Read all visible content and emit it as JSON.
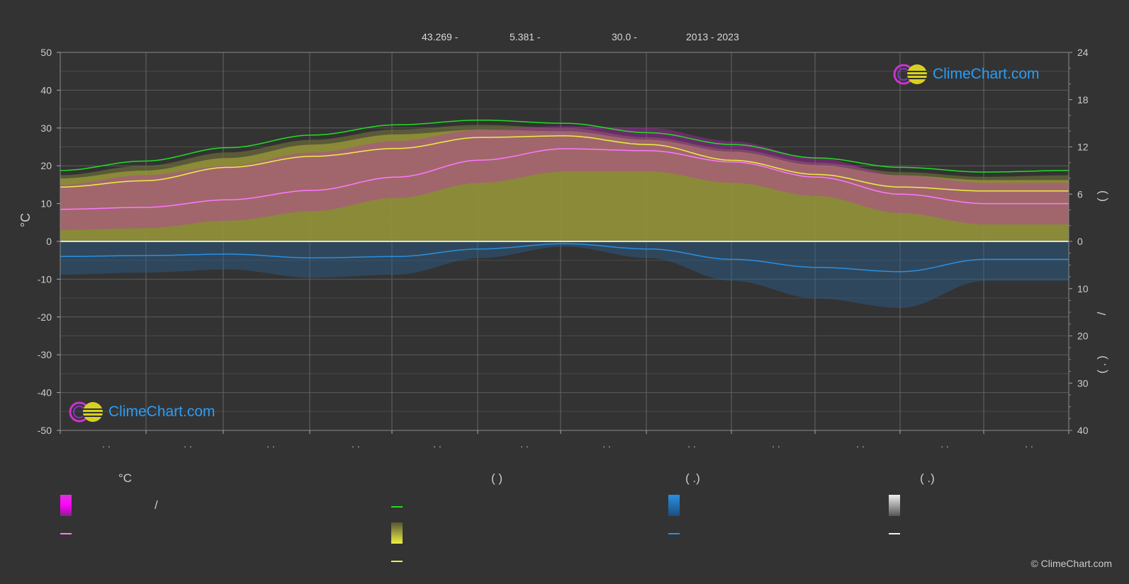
{
  "header": {
    "lat": "43.269 -",
    "lon": "5.381 -",
    "elev": "30.0 -",
    "years": "2013 - 2023"
  },
  "logo": {
    "text": "ClimeChart.com"
  },
  "copyright": "© ClimeChart.com",
  "legend": {
    "col1_title": "°C",
    "col1_sep": "/",
    "col2_title": "(          )",
    "col3_title": "(   .)",
    "col4_title": "(   .)"
  },
  "colors": {
    "background": "#333333",
    "daylight": "#22dd22",
    "sunshine": "#eeee44",
    "temp_mean": "#ff77ff",
    "temp_range": "#cc22cc",
    "sunshine_fill": "#8f8f3a",
    "precip": "#2a8fe0",
    "precip_fill": "#2a5f8f",
    "grid": "#666666",
    "zero_line": "#e0e0e0"
  },
  "chart_data": {
    "type": "line",
    "y_left": {
      "label": "°C",
      "ylim": [
        -50,
        50
      ],
      "ticks": [
        50,
        40,
        30,
        20,
        10,
        0,
        -10,
        -20,
        -30,
        -40,
        -50
      ]
    },
    "y_right_upper": {
      "ylim": [
        0,
        24
      ],
      "ticks": [
        24,
        18,
        12,
        6,
        0
      ]
    },
    "y_right_lower": {
      "ylim": [
        0,
        40
      ],
      "ticks": [
        0,
        10,
        20,
        30,
        40
      ]
    },
    "right_labels": [
      "(   )",
      "/",
      "(  .  )"
    ],
    "x_tick_labels": [
      "· ·",
      "· ·",
      "· ·",
      "· ·",
      "· ·",
      "· ·",
      "· ·",
      "· ·",
      "· ·",
      "· ·",
      "· ·",
      "· ·"
    ],
    "months": 12,
    "grid": true,
    "series": [
      {
        "key": "daylight",
        "axis": "upper",
        "values": [
          9.0,
          10.2,
          11.9,
          13.5,
          14.8,
          15.4,
          15.0,
          13.8,
          12.3,
          10.6,
          9.4,
          8.8,
          9.0
        ]
      },
      {
        "key": "sunshine_line",
        "axis": "upper",
        "values": [
          6.9,
          7.7,
          9.4,
          10.8,
          11.8,
          13.2,
          13.4,
          12.3,
          10.3,
          8.5,
          6.9,
          6.4,
          6.4
        ]
      },
      {
        "key": "sunshine_fill_top",
        "axis": "upper",
        "values": [
          8.0,
          9.0,
          10.6,
          12.3,
          13.6,
          14.2,
          14.0,
          12.9,
          11.4,
          9.7,
          8.4,
          7.8,
          7.8
        ]
      },
      {
        "key": "temp_mean",
        "axis": "left",
        "values": [
          8.5,
          9.0,
          11.0,
          13.5,
          17.0,
          21.5,
          24.5,
          24.0,
          21.0,
          17.0,
          12.5,
          10.0,
          10.0
        ]
      },
      {
        "key": "temp_max",
        "axis": "left",
        "values": [
          15.0,
          17.5,
          20.0,
          23.5,
          26.5,
          29.5,
          30.5,
          30.0,
          26.5,
          22.0,
          17.5,
          15.5,
          15.5
        ]
      },
      {
        "key": "temp_min",
        "axis": "left",
        "values": [
          3.0,
          3.5,
          5.5,
          8.0,
          11.5,
          15.5,
          18.5,
          18.5,
          15.5,
          12.0,
          7.5,
          4.5,
          4.5
        ]
      },
      {
        "key": "precip",
        "axis": "lower",
        "values": [
          3.2,
          3.0,
          2.7,
          3.5,
          3.2,
          1.6,
          0.5,
          1.6,
          3.8,
          5.5,
          6.4,
          3.8,
          3.8
        ]
      }
    ]
  }
}
